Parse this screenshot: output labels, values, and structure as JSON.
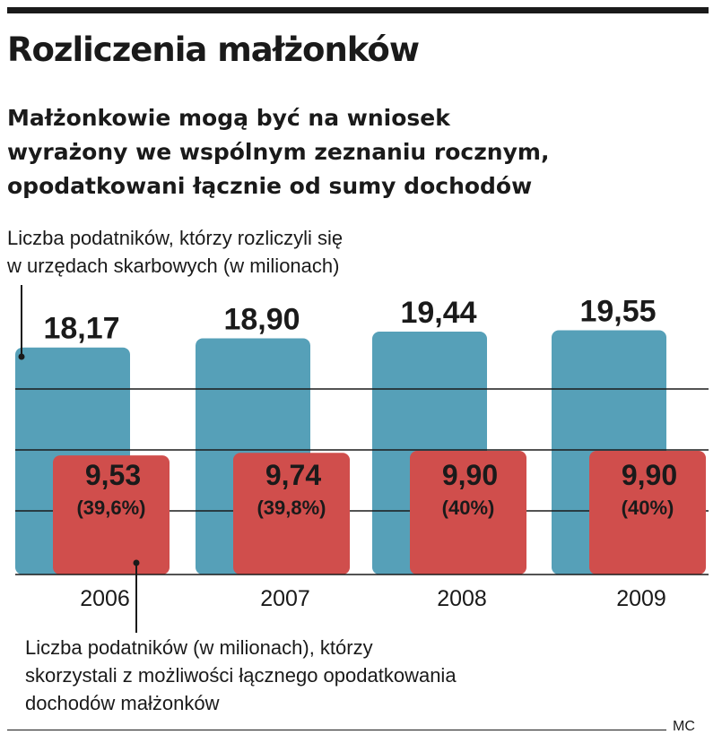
{
  "header": {
    "title": "Rozliczenia małżonków",
    "subtitle": "Małżonkowie mogą być na wniosek\nwyrażony we wspólnym zeznaniu rocznym,\nopodatkowani łącznie od sumy dochodów"
  },
  "annotations": {
    "top": "Liczba podatników, którzy rozliczyli się\nw urzędach skarbowych (w milionach)",
    "bottom": "Liczba podatników (w milionach), którzy\nskorzystali z możliwości łącznego opodatkowania\ndochodów małżonków"
  },
  "credit": "MC",
  "colors": {
    "series_total": "#56a0b8",
    "series_joint": "#d04e4c",
    "text": "#1a1a1a",
    "gridline": "#1a1a1a"
  },
  "chart_data": {
    "type": "bar",
    "categories": [
      "2006",
      "2007",
      "2008",
      "2009"
    ],
    "series": [
      {
        "key": "total",
        "values": [
          18.17,
          18.9,
          19.44,
          19.55
        ],
        "labels": [
          "18,17",
          "18,90",
          "19,44",
          "19,55"
        ]
      },
      {
        "key": "joint",
        "values": [
          9.53,
          9.74,
          9.9,
          9.9
        ],
        "labels": [
          "9,53",
          "9,74",
          "9,90",
          "9,90"
        ],
        "share_labels": [
          "(39,6%)",
          "(39,8%)",
          "(40%)",
          "(40%)"
        ]
      }
    ],
    "grid": true,
    "legend": "none"
  }
}
